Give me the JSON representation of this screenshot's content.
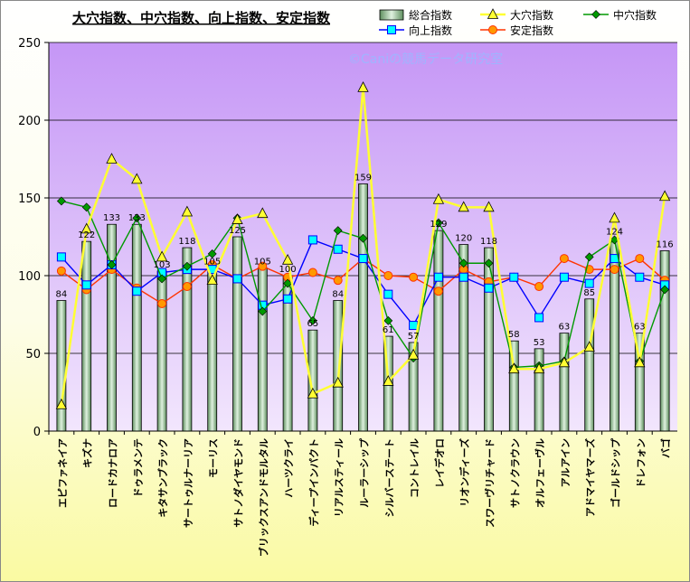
{
  "chart_data": {
    "type": "bar",
    "title": "大穴指数、中穴指数、向上指数、安定指数",
    "watermark": "©Caniの競馬データ研究室",
    "ylim": [
      0,
      250
    ],
    "yticks": [
      0,
      50,
      100,
      150,
      200,
      250
    ],
    "grid": true,
    "legend_position": "top-right",
    "categories": [
      "エピファネイア",
      "キズナ",
      "ロードカナロア",
      "ドゥラメンテ",
      "キタサンブラック",
      "サートゥルナーリア",
      "モーリス",
      "サトノダイヤモンド",
      "ブリックスアンドモルタル",
      "ハーツクライ",
      "ディープインパクト",
      "リアルスティール",
      "ルーラーシップ",
      "シルバーステート",
      "コントレイル",
      "レイデオロ",
      "リオンディーズ",
      "スワーヴリチャード",
      "サトノクラウン",
      "オルフェーヴル",
      "アルアイン",
      "アドマイヤマーズ",
      "ゴールドシップ",
      "ドレフォン",
      "バゴ"
    ],
    "series": [
      {
        "name": "総合指数",
        "kind": "bar",
        "color": "#a3c9a3",
        "values": [
          84,
          122,
          133,
          133,
          103,
          118,
          105,
          125,
          105,
          100,
          65,
          84,
          159,
          61,
          57,
          129,
          120,
          118,
          58,
          53,
          63,
          85,
          124,
          63,
          116
        ]
      },
      {
        "name": "大穴指数",
        "kind": "line",
        "color": "#ffff33",
        "marker": "triangle",
        "values": [
          17,
          130,
          175,
          162,
          112,
          141,
          97,
          136,
          140,
          110,
          24,
          31,
          221,
          32,
          49,
          149,
          144,
          144,
          40,
          40,
          44,
          54,
          137,
          44,
          151
        ]
      },
      {
        "name": "中穴指数",
        "kind": "line",
        "color": "#009900",
        "marker": "diamond",
        "values": [
          148,
          144,
          107,
          137,
          98,
          106,
          114,
          137,
          77,
          95,
          71,
          129,
          124,
          71,
          47,
          134,
          108,
          108,
          41,
          42,
          45,
          112,
          123,
          45,
          91
        ]
      },
      {
        "name": "向上指数",
        "kind": "line",
        "color": "#0000ff",
        "marker": "square",
        "values": [
          112,
          94,
          107,
          90,
          102,
          104,
          104,
          98,
          81,
          85,
          123,
          117,
          111,
          88,
          68,
          99,
          99,
          92,
          99,
          73,
          99,
          95,
          111,
          99,
          94
        ]
      },
      {
        "name": "安定指数",
        "kind": "line",
        "color": "#ff3300",
        "marker": "circle",
        "values": [
          103,
          91,
          104,
          92,
          82,
          93,
          107,
          98,
          106,
          99,
          102,
          97,
          111,
          100,
          99,
          90,
          104,
          96,
          99,
          93,
          111,
          104,
          104,
          111,
          97
        ]
      }
    ]
  }
}
